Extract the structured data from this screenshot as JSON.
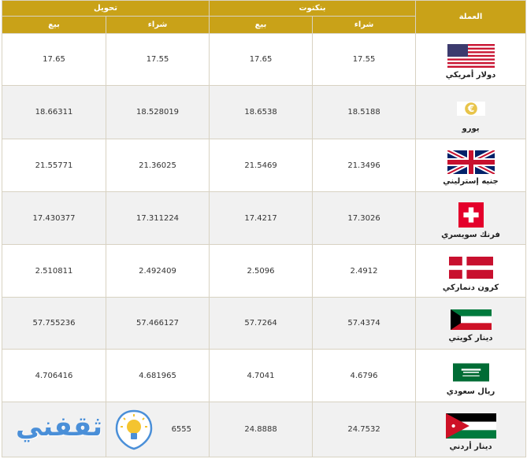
{
  "headers": {
    "transfer_group": "تحويل",
    "banknote_group": "بنكنوت",
    "currency": "العملة",
    "sell": "بيع",
    "buy": "شراء"
  },
  "rows": [
    {
      "currency": "دولار أمريكي",
      "flag": "us-flag",
      "banknote_buy": "17.55",
      "banknote_sell": "17.65",
      "transfer_buy": "17.55",
      "transfer_sell": "17.65"
    },
    {
      "currency": "يورو",
      "flag": "euro-icon",
      "banknote_buy": "18.5188",
      "banknote_sell": "18.6538",
      "transfer_buy": "18.528019",
      "transfer_sell": "18.66311"
    },
    {
      "currency": "جنيه إسترليني",
      "flag": "uk-flag",
      "banknote_buy": "21.3496",
      "banknote_sell": "21.5469",
      "transfer_buy": "21.36025",
      "transfer_sell": "21.55771"
    },
    {
      "currency": "فرنك سويسري",
      "flag": "swiss-flag",
      "banknote_buy": "17.3026",
      "banknote_sell": "17.4217",
      "transfer_buy": "17.311224",
      "transfer_sell": "17.430377"
    },
    {
      "currency": "كرون دنماركي",
      "flag": "danish-flag",
      "banknote_buy": "2.4912",
      "banknote_sell": "2.5096",
      "transfer_buy": "2.492409",
      "transfer_sell": "2.510811"
    },
    {
      "currency": "دينار كويتي",
      "flag": "kuwait-flag",
      "banknote_buy": "57.4374",
      "banknote_sell": "57.7264",
      "transfer_buy": "57.466127",
      "transfer_sell": "57.755236"
    },
    {
      "currency": "ريال سعودي",
      "flag": "saudi-flag",
      "banknote_buy": "4.6796",
      "banknote_sell": "4.7041",
      "transfer_buy": "4.681965",
      "transfer_sell": "4.706416"
    },
    {
      "currency": "دينار أردني",
      "flag": "jordan-flag",
      "banknote_buy": "24.7532",
      "banknote_sell": "24.8888",
      "transfer_buy": "6555",
      "transfer_sell": ""
    }
  ],
  "watermark": {
    "text": "ثقفني",
    "icon": "lightbulb-icon"
  },
  "colors": {
    "header_bg": "#c9a218",
    "row_alt_bg": "#f1f1f1",
    "border": "#d8d2c2"
  }
}
